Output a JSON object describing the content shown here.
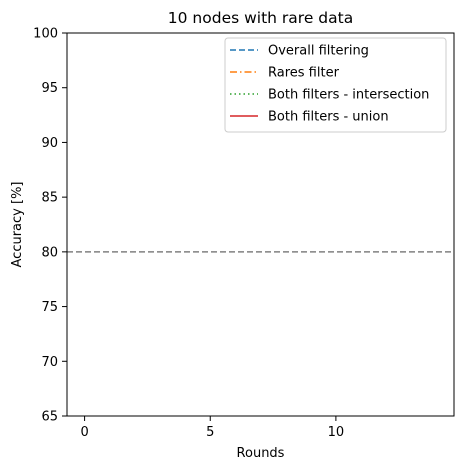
{
  "chart_data": {
    "type": "line",
    "title": "10 nodes with rare data",
    "xlabel": "Rounds",
    "ylabel": "Accuracy [%]",
    "xlim": [
      -0.7,
      14.7
    ],
    "ylim": [
      65,
      100
    ],
    "xticks": [
      0,
      5,
      10
    ],
    "yticks": [
      65,
      70,
      75,
      80,
      85,
      90,
      95,
      100
    ],
    "grid": false,
    "legend_position": "top-right",
    "series": [
      {
        "name": "Overall filtering",
        "color": "#1f77b4",
        "linestyle": "dashed",
        "x": [],
        "y": []
      },
      {
        "name": "Rares filter",
        "color": "#ff7f0e",
        "linestyle": "dashdot",
        "x": [],
        "y": []
      },
      {
        "name": "Both filters - intersection",
        "color": "#2ca02c",
        "linestyle": "dotted",
        "x": [],
        "y": []
      },
      {
        "name": "Both filters - union",
        "color": "#d62728",
        "linestyle": "solid",
        "x": [],
        "y": []
      }
    ],
    "reference_lines": [
      {
        "orientation": "horizontal",
        "y": 80,
        "color": "#808080",
        "linestyle": "dashed"
      }
    ]
  }
}
